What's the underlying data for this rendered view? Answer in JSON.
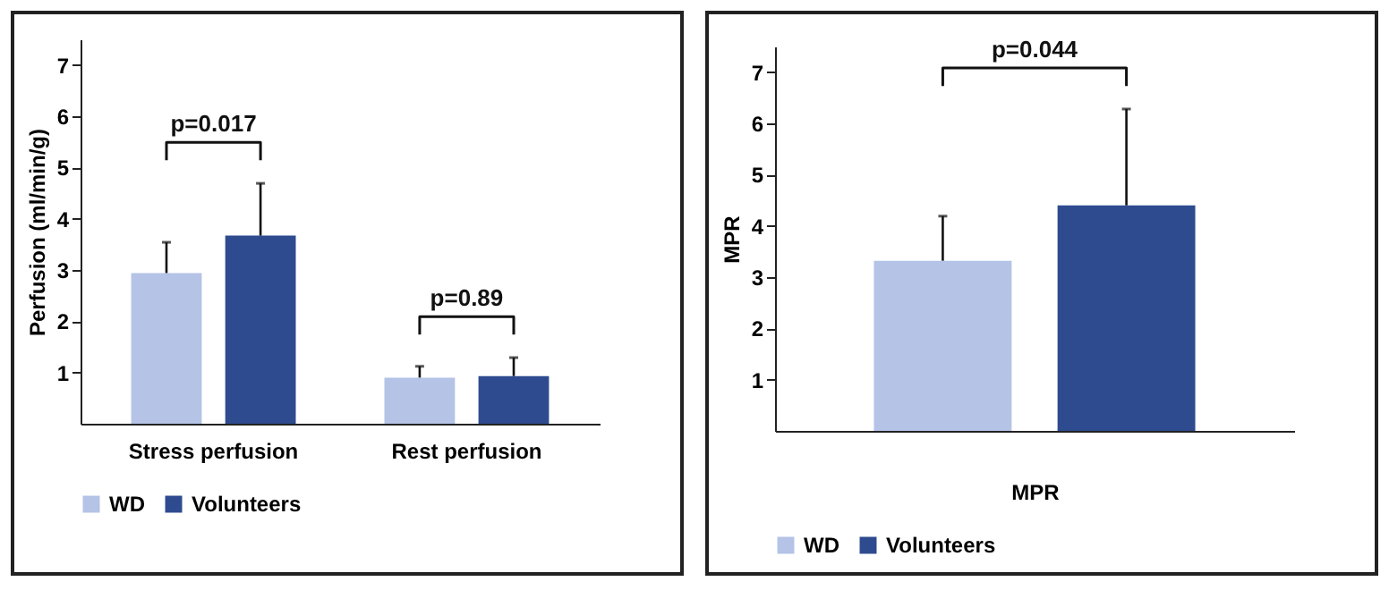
{
  "chart_data": [
    {
      "type": "bar",
      "ylabel": "Perfusion (ml/min/g)",
      "categories": [
        "Stress perfusion",
        "Rest perfusion"
      ],
      "series": [
        {
          "name": "WD",
          "color": "#b4c3e6",
          "values": [
            2.94,
            0.9
          ],
          "errors": [
            [
              2.94,
              3.54
            ],
            [
              0.9,
              1.12
            ]
          ]
        },
        {
          "name": "Volunteers",
          "color": "#2f4b8f",
          "values": [
            3.67,
            0.93
          ],
          "errors": [
            [
              3.67,
              4.69
            ],
            [
              0.93,
              1.29
            ]
          ]
        }
      ],
      "ylim": [
        0,
        7.5
      ],
      "yticks": [
        1,
        2,
        3,
        4,
        5,
        6,
        7
      ],
      "legend": "bottom",
      "grid": false,
      "annotations": [
        "p=0.017",
        "p=0.89"
      ]
    },
    {
      "type": "bar",
      "ylabel": "MPR",
      "xlabel": "MPR",
      "categories": [
        null
      ],
      "series": [
        {
          "name": "WD",
          "color": "#b4c3e6",
          "values": [
            3.32
          ],
          "errors": [
            [
              3.32,
              4.19
            ]
          ]
        },
        {
          "name": "Volunteers",
          "color": "#2f4b8f",
          "values": [
            4.4
          ],
          "errors": [
            [
              4.4,
              6.28
            ]
          ]
        }
      ],
      "ylim": [
        0,
        7.5
      ],
      "yticks": [
        1,
        2,
        3,
        4,
        5,
        6,
        7
      ],
      "legend": "bottom",
      "grid": false,
      "annotations": [
        "p=0.044"
      ]
    }
  ]
}
